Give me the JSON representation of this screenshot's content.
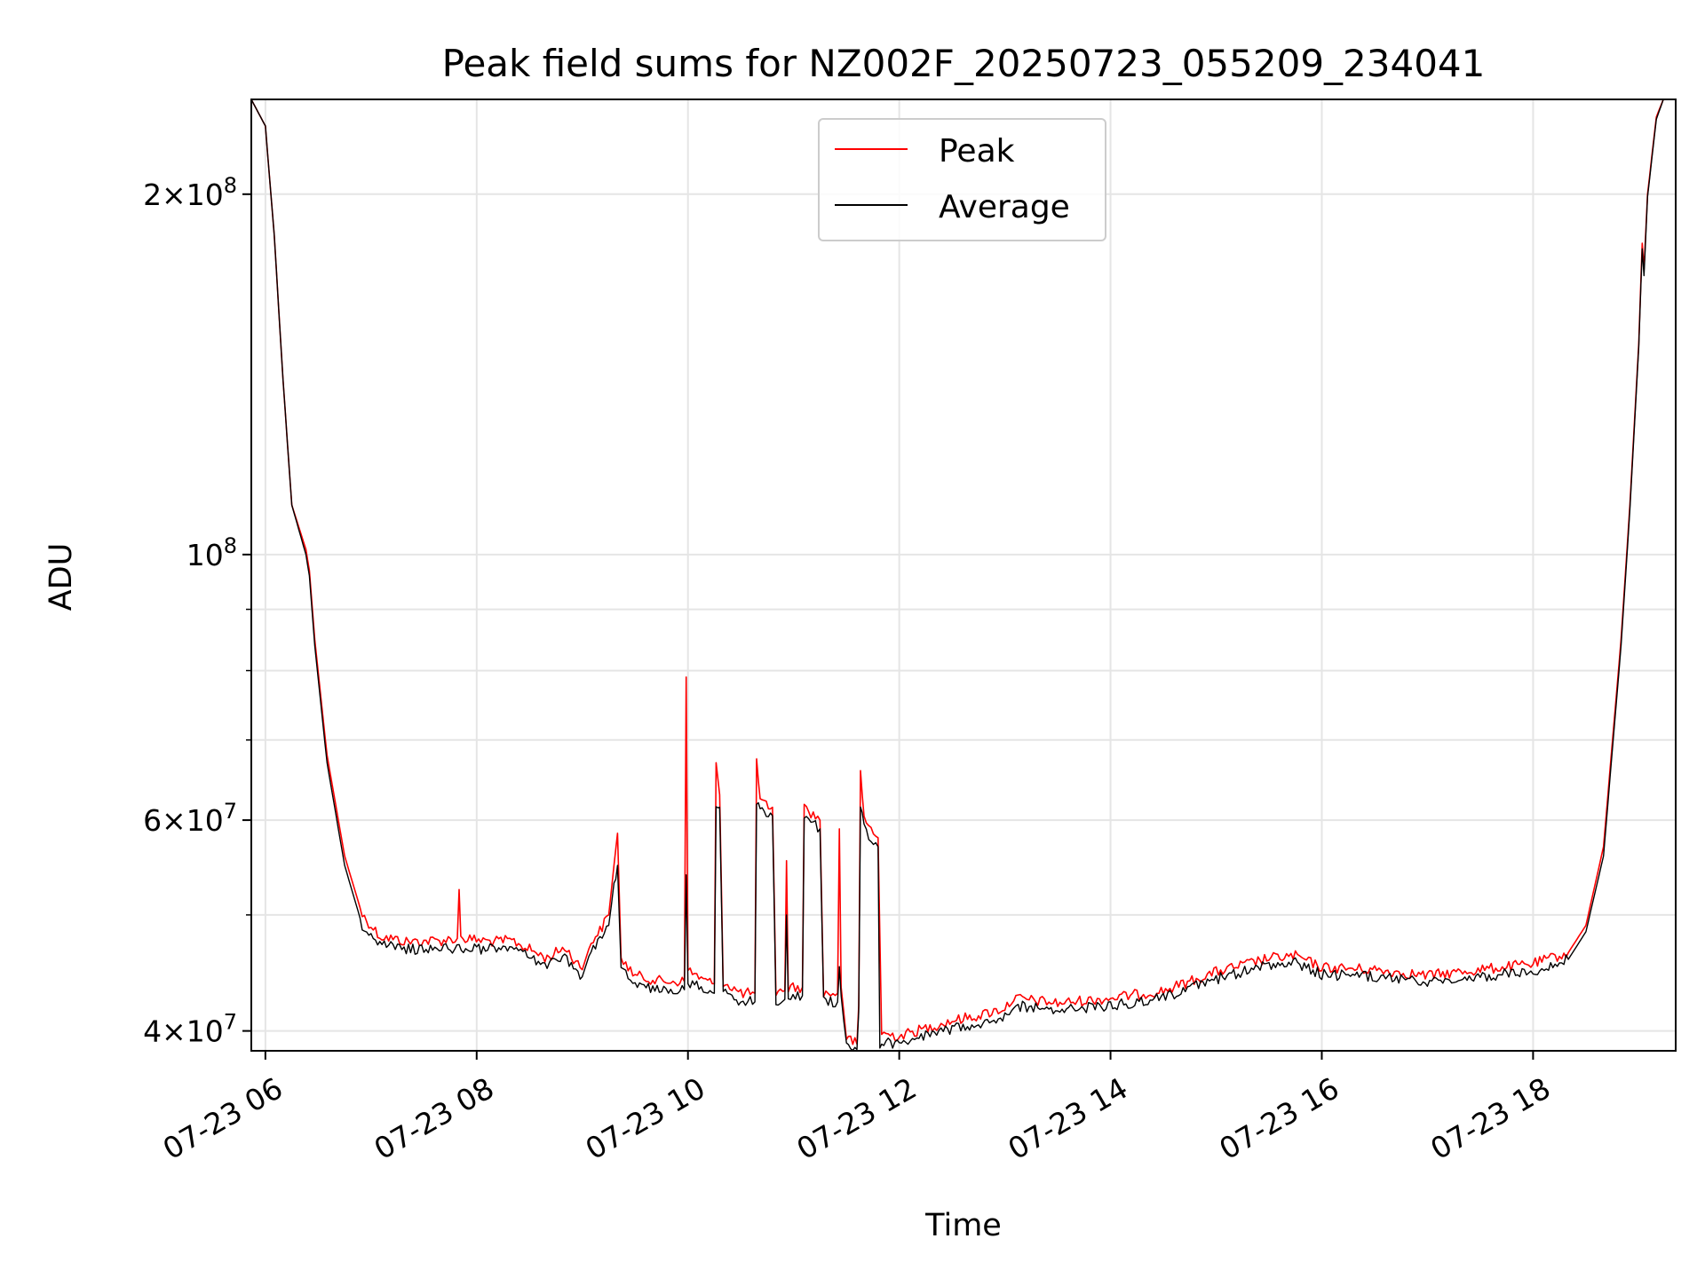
{
  "chart_data": {
    "type": "line",
    "title": "Peak field sums for NZ002F_20250723_055209_234041",
    "xlabel": "Time",
    "ylabel": "ADU",
    "x_axis": "datetime",
    "xlim": [
      "2025-07-23 05:52",
      "2025-07-23 19:21"
    ],
    "ylim": [
      38500000,
      240000000
    ],
    "yscale": "log",
    "grid": true,
    "legend_position": "top-center",
    "x_tick_labels": [
      "07-23 06",
      "07-23 08",
      "07-23 10",
      "07-23 12",
      "07-23 14",
      "07-23 16",
      "07-23 18"
    ],
    "x_ticks": [
      "2025-07-23 06:00",
      "2025-07-23 08:00",
      "2025-07-23 10:00",
      "2025-07-23 12:00",
      "2025-07-23 14:00",
      "2025-07-23 16:00",
      "2025-07-23 18:00"
    ],
    "y_ticks": [
      {
        "value": 40000000,
        "mantissa": "4",
        "base": "10",
        "exp": "7"
      },
      {
        "value": 60000000,
        "mantissa": "6",
        "base": "10",
        "exp": "7"
      },
      {
        "value": 100000000,
        "mantissa": "",
        "base": "10",
        "exp": "8"
      },
      {
        "value": 200000000,
        "mantissa": "2",
        "base": "10",
        "exp": "8"
      }
    ],
    "y_minor_ticks": [
      50000000,
      70000000,
      80000000,
      90000000
    ],
    "series": [
      {
        "name": "Peak",
        "color": "#ff0000",
        "points": [
          [
            "2025-07-23 05:52",
            240000000
          ],
          [
            "2025-07-23 06:00",
            228000000
          ],
          [
            "2025-07-23 06:05",
            185000000
          ],
          [
            "2025-07-23 06:10",
            140000000
          ],
          [
            "2025-07-23 06:15",
            110000000
          ],
          [
            "2025-07-23 06:23",
            101000000
          ],
          [
            "2025-07-23 06:25",
            97000000
          ],
          [
            "2025-07-23 06:28",
            85000000
          ],
          [
            "2025-07-23 06:35",
            68000000
          ],
          [
            "2025-07-23 06:45",
            56000000
          ],
          [
            "2025-07-23 06:55",
            50000000
          ],
          [
            "2025-07-23 07:05",
            48000000
          ],
          [
            "2025-07-23 07:20",
            47500000
          ],
          [
            "2025-07-23 07:40",
            47600000
          ],
          [
            "2025-07-23 07:49",
            47800000
          ],
          [
            "2025-07-23 07:50",
            52500000
          ],
          [
            "2025-07-23 07:51",
            47800000
          ],
          [
            "2025-07-23 08:10",
            47500000
          ],
          [
            "2025-07-23 08:20",
            47600000
          ],
          [
            "2025-07-23 08:40",
            46000000
          ],
          [
            "2025-07-23 08:50",
            47000000
          ],
          [
            "2025-07-23 09:00",
            45000000
          ],
          [
            "2025-07-23 09:05",
            47500000
          ],
          [
            "2025-07-23 09:10",
            48500000
          ],
          [
            "2025-07-23 09:15",
            50000000
          ],
          [
            "2025-07-23 09:18",
            55000000
          ],
          [
            "2025-07-23 09:20",
            58500000
          ],
          [
            "2025-07-23 09:22",
            46000000
          ],
          [
            "2025-07-23 09:30",
            44500000
          ],
          [
            "2025-07-23 09:45",
            44000000
          ],
          [
            "2025-07-23 09:58",
            44000000
          ],
          [
            "2025-07-23 09:59",
            79000000
          ],
          [
            "2025-07-23 10:00",
            45000000
          ],
          [
            "2025-07-23 10:10",
            44000000
          ],
          [
            "2025-07-23 10:15",
            43800000
          ],
          [
            "2025-07-23 10:16",
            67000000
          ],
          [
            "2025-07-23 10:18",
            63000000
          ],
          [
            "2025-07-23 10:20",
            44000000
          ],
          [
            "2025-07-23 10:30",
            43000000
          ],
          [
            "2025-07-23 10:38",
            43000000
          ],
          [
            "2025-07-23 10:39",
            67500000
          ],
          [
            "2025-07-23 10:41",
            62000000
          ],
          [
            "2025-07-23 10:48",
            61500000
          ],
          [
            "2025-07-23 10:50",
            43000000
          ],
          [
            "2025-07-23 10:55",
            43200000
          ],
          [
            "2025-07-23 10:56",
            55500000
          ],
          [
            "2025-07-23 10:57",
            43500000
          ],
          [
            "2025-07-23 11:05",
            43500000
          ],
          [
            "2025-07-23 11:06",
            61500000
          ],
          [
            "2025-07-23 11:15",
            60000000
          ],
          [
            "2025-07-23 11:17",
            43000000
          ],
          [
            "2025-07-23 11:25",
            43000000
          ],
          [
            "2025-07-23 11:26",
            59000000
          ],
          [
            "2025-07-23 11:27",
            43500000
          ],
          [
            "2025-07-23 11:30",
            39500000
          ],
          [
            "2025-07-23 11:36",
            39000000
          ],
          [
            "2025-07-23 11:37",
            42000000
          ],
          [
            "2025-07-23 11:38",
            66000000
          ],
          [
            "2025-07-23 11:40",
            60000000
          ],
          [
            "2025-07-23 11:48",
            58000000
          ],
          [
            "2025-07-23 11:50",
            39800000
          ],
          [
            "2025-07-23 12:00",
            39600000
          ],
          [
            "2025-07-23 12:15",
            40200000
          ],
          [
            "2025-07-23 12:30",
            40800000
          ],
          [
            "2025-07-23 12:45",
            41200000
          ],
          [
            "2025-07-23 13:00",
            41800000
          ],
          [
            "2025-07-23 13:05",
            42600000
          ],
          [
            "2025-07-23 13:30",
            42200000
          ],
          [
            "2025-07-23 14:00",
            42600000
          ],
          [
            "2025-07-23 14:30",
            43200000
          ],
          [
            "2025-07-23 15:00",
            44800000
          ],
          [
            "2025-07-23 15:30",
            46000000
          ],
          [
            "2025-07-23 15:45",
            46200000
          ],
          [
            "2025-07-23 16:00",
            45200000
          ],
          [
            "2025-07-23 16:30",
            45000000
          ],
          [
            "2025-07-23 17:00",
            44500000
          ],
          [
            "2025-07-23 17:30",
            45000000
          ],
          [
            "2025-07-23 18:00",
            45500000
          ],
          [
            "2025-07-23 18:20",
            46500000
          ],
          [
            "2025-07-23 18:30",
            49000000
          ],
          [
            "2025-07-23 18:40",
            57000000
          ],
          [
            "2025-07-23 18:50",
            85000000
          ],
          [
            "2025-07-23 18:55",
            110000000
          ],
          [
            "2025-07-23 19:00",
            150000000
          ],
          [
            "2025-07-23 19:02",
            182000000
          ],
          [
            "2025-07-23 19:03",
            173000000
          ],
          [
            "2025-07-23 19:05",
            200000000
          ],
          [
            "2025-07-23 19:10",
            232000000
          ],
          [
            "2025-07-23 19:14",
            240000000
          ],
          [
            "2025-07-23 19:21",
            240000000
          ]
        ]
      },
      {
        "name": "Average",
        "color": "#000000",
        "points": [
          [
            "2025-07-23 05:52",
            240000000
          ],
          [
            "2025-07-23 06:00",
            228000000
          ],
          [
            "2025-07-23 06:05",
            185000000
          ],
          [
            "2025-07-23 06:10",
            140000000
          ],
          [
            "2025-07-23 06:15",
            110000000
          ],
          [
            "2025-07-23 06:23",
            100000000
          ],
          [
            "2025-07-23 06:25",
            96000000
          ],
          [
            "2025-07-23 06:28",
            84000000
          ],
          [
            "2025-07-23 06:35",
            67000000
          ],
          [
            "2025-07-23 06:45",
            55000000
          ],
          [
            "2025-07-23 06:55",
            49000000
          ],
          [
            "2025-07-23 07:05",
            47200000
          ],
          [
            "2025-07-23 07:20",
            46800000
          ],
          [
            "2025-07-23 07:40",
            46900000
          ],
          [
            "2025-07-23 08:10",
            46800000
          ],
          [
            "2025-07-23 08:20",
            46900000
          ],
          [
            "2025-07-23 08:40",
            45400000
          ],
          [
            "2025-07-23 08:50",
            46200000
          ],
          [
            "2025-07-23 09:00",
            44400000
          ],
          [
            "2025-07-23 09:05",
            46800000
          ],
          [
            "2025-07-23 09:10",
            47500000
          ],
          [
            "2025-07-23 09:15",
            49000000
          ],
          [
            "2025-07-23 09:18",
            53000000
          ],
          [
            "2025-07-23 09:20",
            55000000
          ],
          [
            "2025-07-23 09:22",
            45000000
          ],
          [
            "2025-07-23 09:30",
            43800000
          ],
          [
            "2025-07-23 09:45",
            43300000
          ],
          [
            "2025-07-23 09:58",
            43300000
          ],
          [
            "2025-07-23 09:59",
            54000000
          ],
          [
            "2025-07-23 10:00",
            44000000
          ],
          [
            "2025-07-23 10:10",
            43200000
          ],
          [
            "2025-07-23 10:15",
            43000000
          ],
          [
            "2025-07-23 10:16",
            62000000
          ],
          [
            "2025-07-23 10:18",
            61500000
          ],
          [
            "2025-07-23 10:20",
            43200000
          ],
          [
            "2025-07-23 10:30",
            42300000
          ],
          [
            "2025-07-23 10:38",
            42300000
          ],
          [
            "2025-07-23 10:39",
            62000000
          ],
          [
            "2025-07-23 10:41",
            61000000
          ],
          [
            "2025-07-23 10:48",
            60500000
          ],
          [
            "2025-07-23 10:50",
            42300000
          ],
          [
            "2025-07-23 10:55",
            42500000
          ],
          [
            "2025-07-23 10:56",
            50000000
          ],
          [
            "2025-07-23 10:57",
            42800000
          ],
          [
            "2025-07-23 11:05",
            42800000
          ],
          [
            "2025-07-23 11:06",
            60500000
          ],
          [
            "2025-07-23 11:15",
            59000000
          ],
          [
            "2025-07-23 11:17",
            42300000
          ],
          [
            "2025-07-23 11:25",
            42300000
          ],
          [
            "2025-07-23 11:26",
            45000000
          ],
          [
            "2025-07-23 11:27",
            42800000
          ],
          [
            "2025-07-23 11:30",
            38800000
          ],
          [
            "2025-07-23 11:36",
            38600000
          ],
          [
            "2025-07-23 11:37",
            41500000
          ],
          [
            "2025-07-23 11:38",
            62000000
          ],
          [
            "2025-07-23 11:40",
            59000000
          ],
          [
            "2025-07-23 11:48",
            57000000
          ],
          [
            "2025-07-23 11:49",
            38500000
          ],
          [
            "2025-07-23 11:50",
            39200000
          ],
          [
            "2025-07-23 12:00",
            39000000
          ],
          [
            "2025-07-23 12:15",
            39600000
          ],
          [
            "2025-07-23 12:30",
            40200000
          ],
          [
            "2025-07-23 12:45",
            40600000
          ],
          [
            "2025-07-23 13:00",
            41200000
          ],
          [
            "2025-07-23 13:05",
            42000000
          ],
          [
            "2025-07-23 13:30",
            41600000
          ],
          [
            "2025-07-23 14:00",
            42000000
          ],
          [
            "2025-07-23 14:30",
            42600000
          ],
          [
            "2025-07-23 15:00",
            44200000
          ],
          [
            "2025-07-23 15:30",
            45400000
          ],
          [
            "2025-07-23 15:45",
            45600000
          ],
          [
            "2025-07-23 16:00",
            44600000
          ],
          [
            "2025-07-23 16:30",
            44400000
          ],
          [
            "2025-07-23 17:00",
            43900000
          ],
          [
            "2025-07-23 17:30",
            44400000
          ],
          [
            "2025-07-23 18:00",
            44900000
          ],
          [
            "2025-07-23 18:20",
            45900000
          ],
          [
            "2025-07-23 18:30",
            48400000
          ],
          [
            "2025-07-23 18:40",
            56000000
          ],
          [
            "2025-07-23 18:50",
            84000000
          ],
          [
            "2025-07-23 18:55",
            109000000
          ],
          [
            "2025-07-23 19:00",
            149000000
          ],
          [
            "2025-07-23 19:02",
            180000000
          ],
          [
            "2025-07-23 19:03",
            171000000
          ],
          [
            "2025-07-23 19:05",
            199000000
          ],
          [
            "2025-07-23 19:10",
            231000000
          ],
          [
            "2025-07-23 19:14",
            240000000
          ],
          [
            "2025-07-23 19:21",
            240000000
          ]
        ]
      }
    ]
  },
  "colors": {
    "grid": "#e5e5e5",
    "axes": "#000000",
    "legend_border": "#cccccc"
  }
}
